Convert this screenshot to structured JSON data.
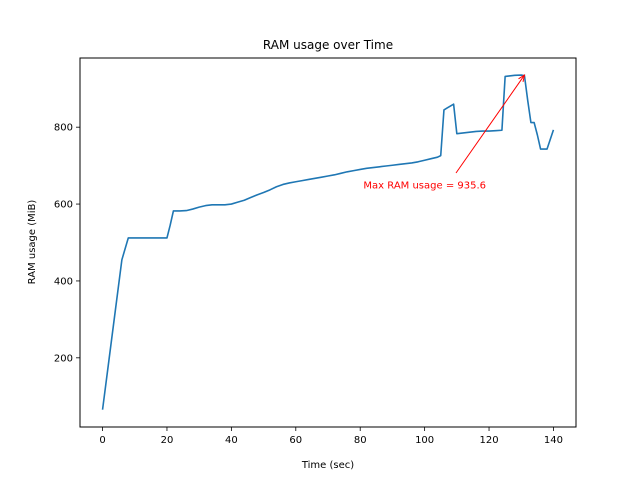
{
  "chart_data": {
    "type": "line",
    "title": "RAM usage over Time",
    "xlabel": "Time (sec)",
    "ylabel": "RAM usage (MiB)",
    "xlim": [
      -7,
      147
    ],
    "ylim": [
      20,
      980
    ],
    "xticks": [
      0,
      20,
      40,
      60,
      80,
      100,
      120,
      140
    ],
    "yticks": [
      200,
      400,
      600,
      800
    ],
    "grid": false,
    "series": [
      {
        "color": "#1f77b4",
        "x": [
          0,
          2,
          4,
          6,
          8,
          10,
          12,
          14,
          16,
          18,
          19,
          20,
          21,
          22,
          24,
          26,
          28,
          30,
          32,
          34,
          36,
          38,
          40,
          42,
          44,
          46,
          48,
          50,
          52,
          54,
          56,
          58,
          60,
          62,
          64,
          66,
          68,
          70,
          72,
          74,
          76,
          78,
          80,
          82,
          84,
          86,
          88,
          90,
          92,
          93,
          94,
          96,
          98,
          100,
          102,
          104,
          105,
          106,
          107,
          108,
          109,
          110,
          112,
          114,
          116,
          118,
          120,
          122,
          124,
          125,
          126,
          128,
          130,
          131,
          132,
          133,
          134,
          135,
          136,
          138,
          140
        ],
        "y": [
          65,
          195,
          325,
          455,
          512,
          512,
          512,
          512,
          512,
          512,
          512,
          512,
          545,
          582,
          582,
          583,
          587,
          592,
          596,
          598,
          598,
          598,
          600,
          605,
          610,
          617,
          624,
          630,
          637,
          645,
          651,
          655,
          658,
          661,
          664,
          667,
          670,
          673,
          676,
          680,
          684,
          687,
          690,
          693,
          695,
          697,
          699,
          701,
          703,
          704,
          705,
          707,
          710,
          714,
          718,
          722,
          726,
          845,
          850,
          855,
          860,
          783,
          785,
          787,
          789,
          790,
          790,
          791,
          792,
          932,
          933,
          935,
          935.6,
          934,
          870,
          812,
          812,
          780,
          743,
          743,
          793
        ]
      }
    ],
    "annotation": {
      "text": "Max RAM usage = 935.6",
      "color": "#ff0000",
      "xy": [
        131,
        935.6
      ],
      "xytext": [
        81,
        640
      ]
    }
  }
}
